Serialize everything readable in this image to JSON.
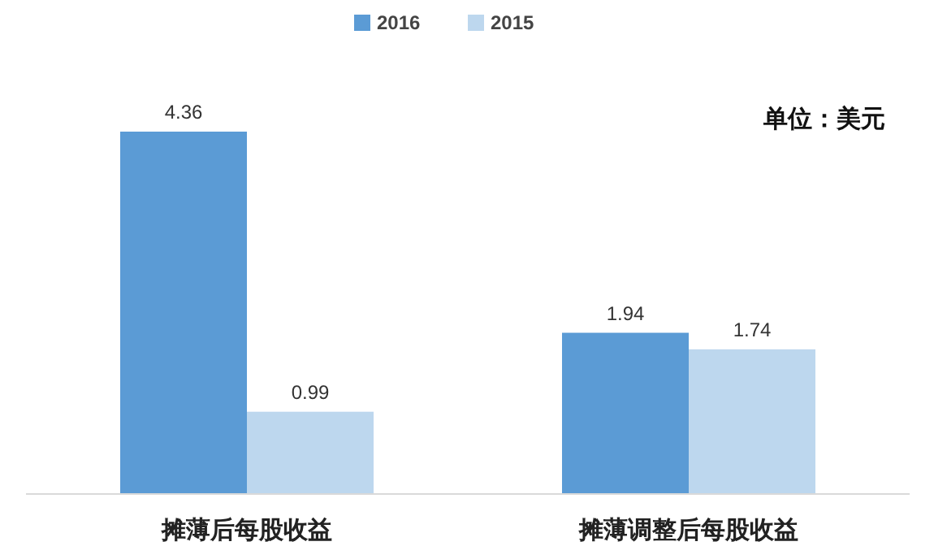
{
  "chart_data": {
    "type": "bar",
    "categories": [
      "摊薄后每股收益",
      "摊薄调整后每股收益"
    ],
    "series": [
      {
        "name": "2016",
        "color": "#5b9bd5",
        "values": [
          4.36,
          1.94
        ]
      },
      {
        "name": "2015",
        "color": "#bdd7ee",
        "values": [
          0.99,
          1.74
        ]
      }
    ],
    "data_labels": true,
    "legend": "top",
    "annotations": [
      "单位：美元"
    ]
  }
}
